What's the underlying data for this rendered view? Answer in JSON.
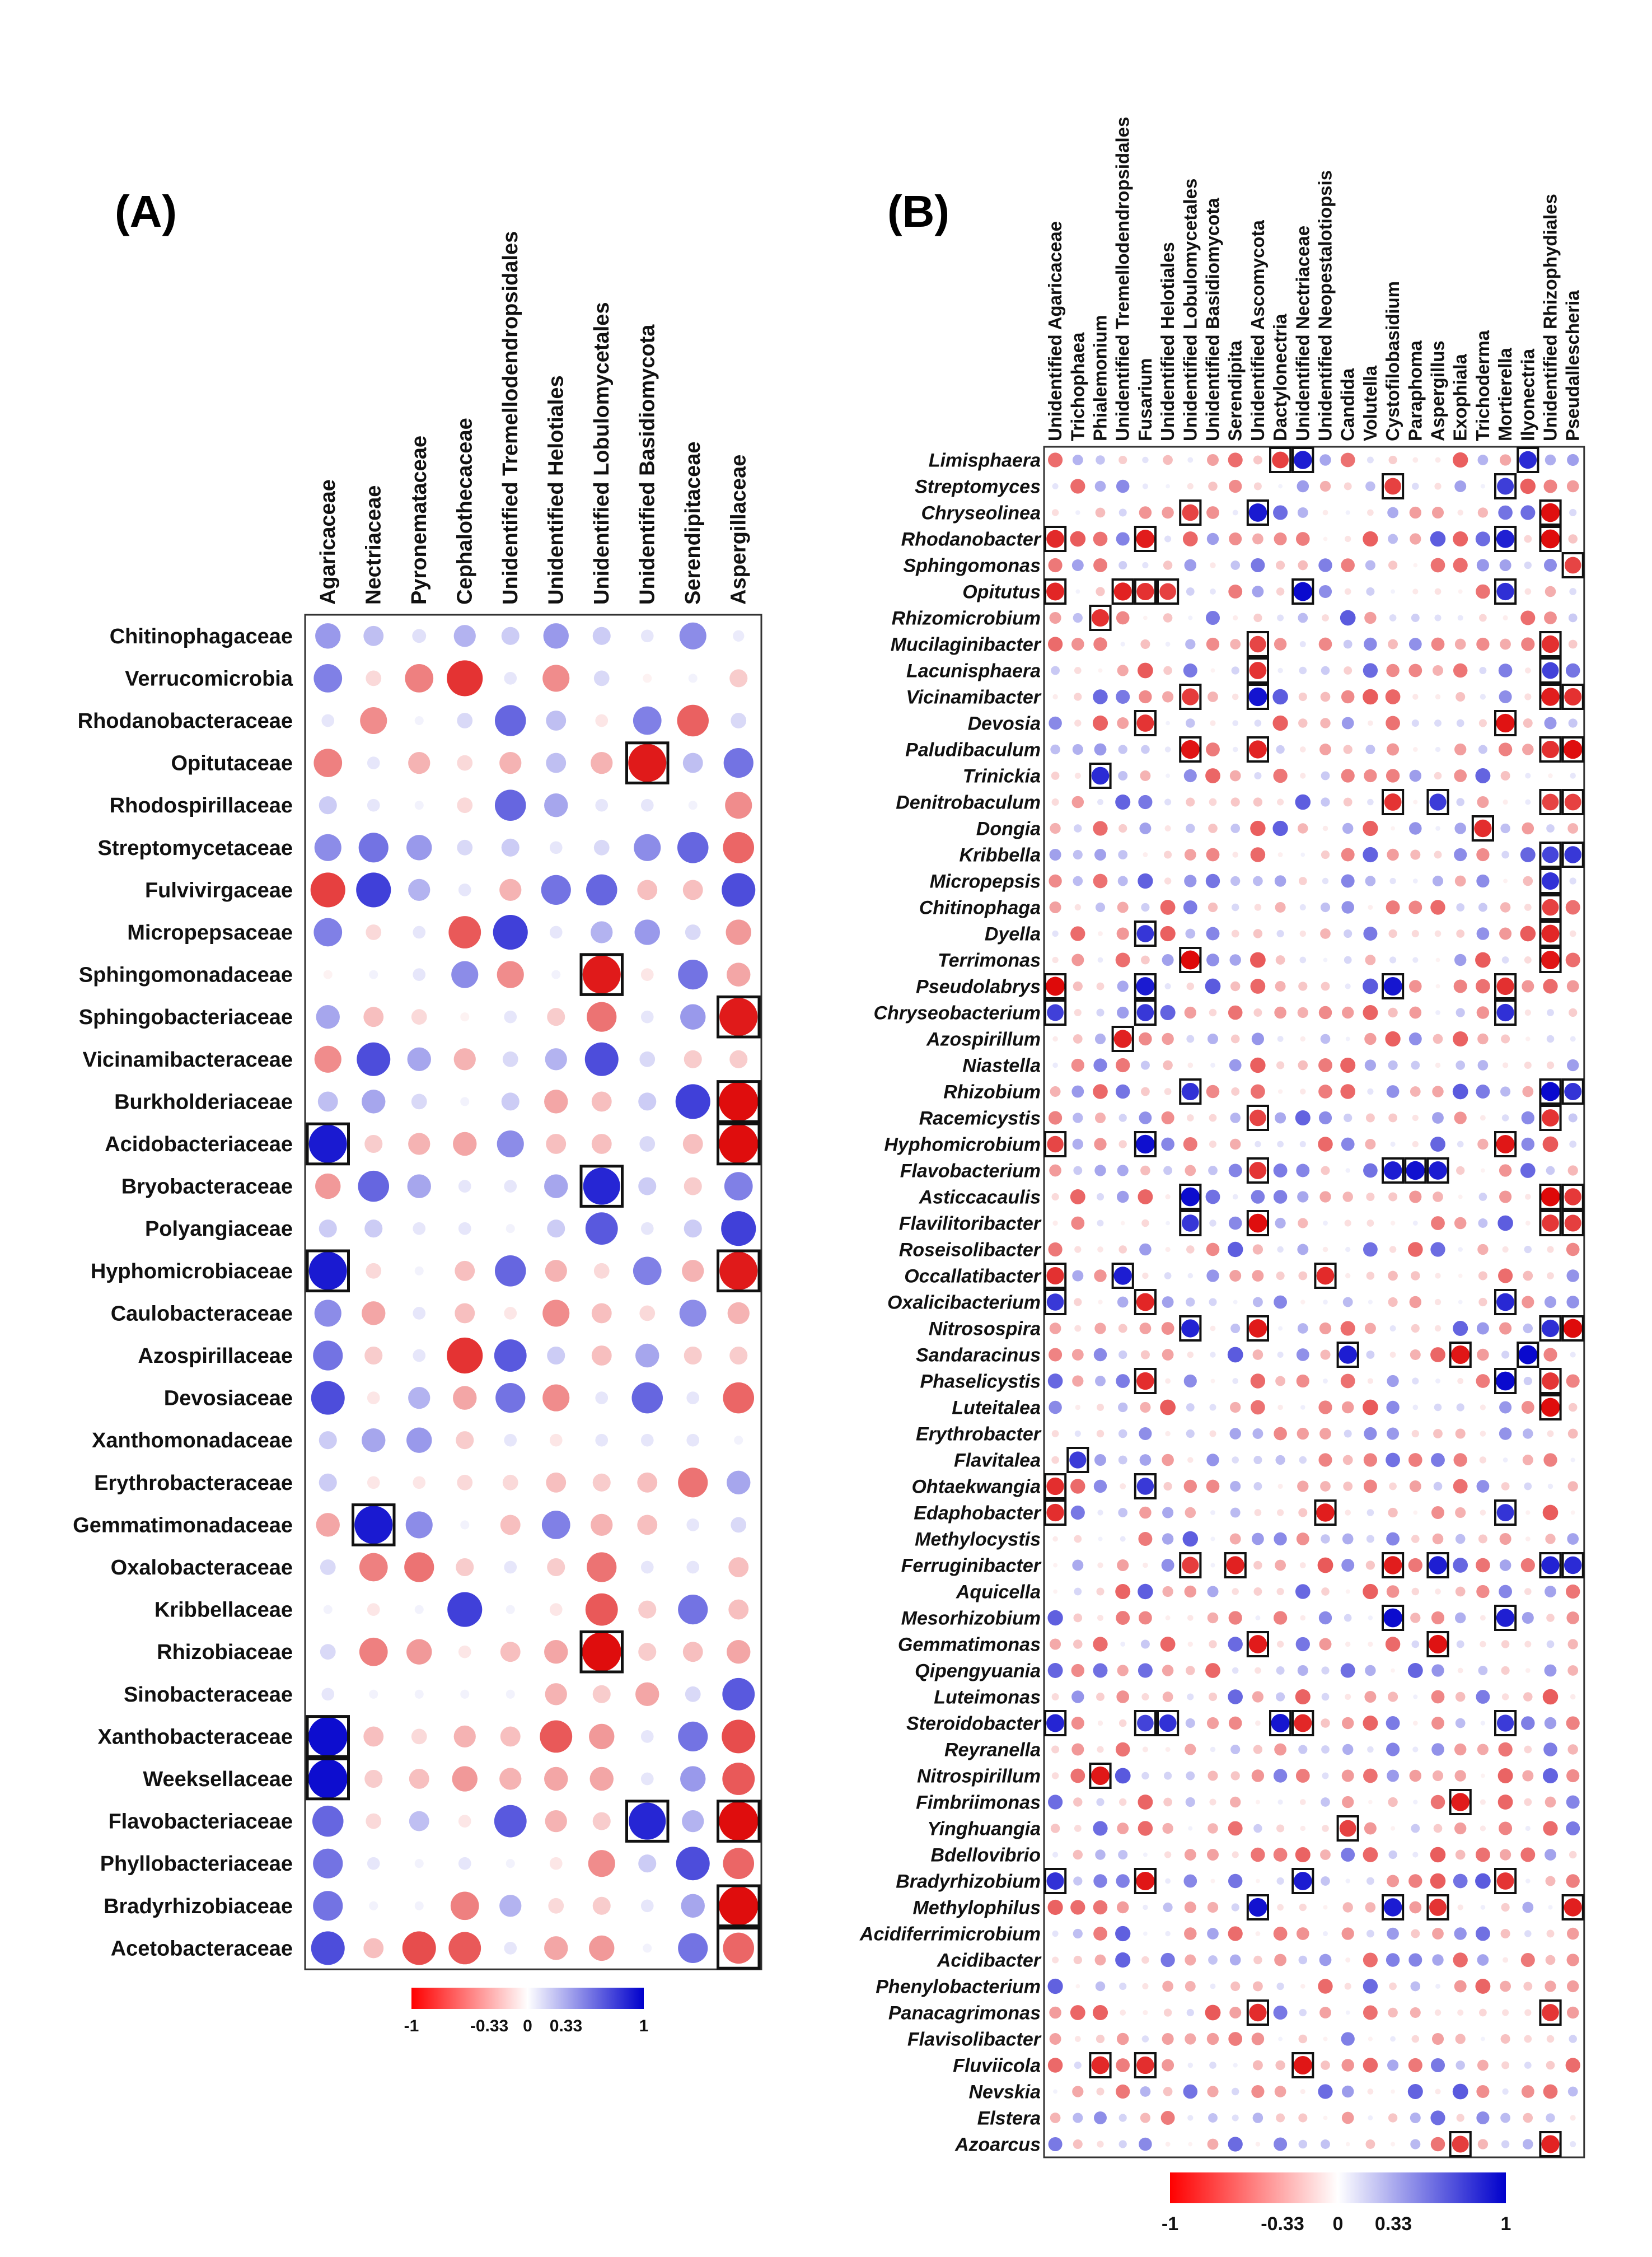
{
  "colors": {
    "negative": "#dd0000",
    "mid": "#ffffff",
    "positive": "#0000cc",
    "border": "#333333",
    "highlight": "#111111"
  },
  "chart_data": [
    {
      "type": "heatmap",
      "panel_label": "(A)",
      "title": "",
      "columns": [
        "Agaricaceae",
        "Nectriaceae",
        "Pyronemataceae",
        "Cephalothecaceae",
        "Unidentified Tremellodendropsidales",
        "Unidentified Helotiales",
        "Unidentified Lobulomycetales",
        "Unidentified Basidiomycota",
        "Serendipitaceae",
        "Aspergillaceae"
      ],
      "rows": [
        "Chitinophagaceae",
        "Verrucomicrobia",
        "Rhodanobacteraceae",
        "Opitutaceae",
        "Rhodospirillaceae",
        "Streptomycetaceae",
        "Fulvivirgaceae",
        "Micropepsaceae",
        "Sphingomonadaceae",
        "Sphingobacteriaceae",
        "Vicinamibacteraceae",
        "Burkholderiaceae",
        "Acidobacteriaceae",
        "Bryobacteraceae",
        "Polyangiaceae",
        "Hyphomicrobiaceae",
        "Caulobacteraceae",
        "Azospirillaceae",
        "Devosiaceae",
        "Xanthomonadaceae",
        "Erythrobacteraceae",
        "Gemmatimonadaceae",
        "Oxalobacteraceae",
        "Kribbellaceae",
        "Rhizobiaceae",
        "Sinobacteraceae",
        "Xanthobacteraceae",
        "Weeksellaceae",
        "Flavobacteriaceae",
        "Phyllobacteriaceae",
        "Bradyrhizobiaceae",
        "Acetobacteraceae"
      ],
      "values": [
        [
          0.4,
          0.25,
          0.12,
          0.3,
          0.2,
          0.4,
          0.2,
          0.1,
          0.45,
          0.08
        ],
        [
          0.5,
          -0.15,
          -0.5,
          -0.8,
          0.1,
          -0.45,
          0.15,
          -0.05,
          0.05,
          -0.2
        ],
        [
          0.1,
          -0.45,
          0.05,
          0.15,
          0.6,
          0.25,
          -0.1,
          0.5,
          -0.62,
          0.15
        ],
        [
          -0.5,
          0.1,
          -0.3,
          -0.15,
          -0.3,
          0.25,
          -0.3,
          -0.9,
          0.25,
          0.55
        ],
        [
          0.2,
          0.1,
          0.05,
          -0.15,
          0.6,
          0.35,
          0.1,
          0.1,
          0.05,
          -0.45
        ],
        [
          0.45,
          0.55,
          0.4,
          0.15,
          0.2,
          0.1,
          0.15,
          0.45,
          0.6,
          -0.6
        ],
        [
          -0.75,
          0.75,
          0.3,
          0.1,
          -0.3,
          0.55,
          0.6,
          -0.25,
          -0.25,
          0.7
        ],
        [
          0.5,
          -0.15,
          0.1,
          -0.65,
          0.75,
          0.1,
          0.3,
          0.4,
          0.15,
          -0.4
        ],
        [
          -0.05,
          0.05,
          0.1,
          0.45,
          -0.45,
          0.05,
          -0.9,
          -0.1,
          0.55,
          -0.35
        ],
        [
          0.35,
          -0.25,
          -0.15,
          -0.05,
          0.1,
          -0.2,
          -0.55,
          0.1,
          0.4,
          -0.9
        ],
        [
          -0.45,
          0.7,
          0.35,
          -0.3,
          0.15,
          0.3,
          0.7,
          0.15,
          -0.2,
          -0.2
        ],
        [
          0.25,
          0.35,
          0.15,
          0.05,
          0.2,
          -0.35,
          -0.25,
          0.2,
          0.75,
          -0.95
        ],
        [
          0.9,
          -0.2,
          -0.3,
          -0.35,
          0.45,
          -0.25,
          -0.25,
          0.15,
          -0.25,
          -0.95
        ],
        [
          -0.4,
          0.6,
          0.35,
          0.1,
          0.1,
          0.35,
          0.85,
          0.2,
          -0.2,
          0.5
        ],
        [
          0.2,
          0.2,
          0.1,
          0.1,
          0.05,
          0.2,
          0.65,
          0.1,
          0.2,
          0.75
        ],
        [
          0.9,
          -0.15,
          0.05,
          -0.25,
          0.6,
          -0.3,
          -0.15,
          0.5,
          -0.3,
          -0.9
        ],
        [
          0.45,
          -0.35,
          0.1,
          -0.25,
          -0.1,
          -0.45,
          -0.25,
          -0.15,
          0.45,
          -0.3
        ],
        [
          0.55,
          -0.2,
          0.1,
          -0.8,
          0.65,
          0.2,
          -0.25,
          0.35,
          -0.2,
          -0.2
        ],
        [
          0.7,
          -0.1,
          0.3,
          -0.35,
          0.55,
          -0.45,
          0.1,
          0.6,
          0.1,
          -0.6
        ],
        [
          0.2,
          0.35,
          0.4,
          -0.2,
          0.1,
          -0.1,
          0.1,
          0.1,
          0.1,
          0.05
        ],
        [
          0.2,
          -0.1,
          -0.1,
          -0.15,
          -0.15,
          -0.25,
          -0.2,
          -0.25,
          -0.55,
          0.35
        ],
        [
          -0.35,
          0.9,
          0.45,
          0.05,
          -0.25,
          0.5,
          -0.3,
          -0.25,
          0.1,
          0.15
        ],
        [
          0.15,
          -0.5,
          -0.55,
          -0.2,
          0.1,
          -0.2,
          -0.55,
          0.1,
          0.1,
          -0.25
        ],
        [
          0.05,
          -0.1,
          0.05,
          0.75,
          0.05,
          -0.1,
          -0.65,
          -0.2,
          0.55,
          -0.25
        ],
        [
          0.15,
          -0.5,
          -0.4,
          -0.1,
          -0.25,
          -0.35,
          -0.95,
          -0.2,
          -0.25,
          -0.35
        ],
        [
          0.1,
          0.05,
          0.05,
          0.05,
          0.05,
          -0.3,
          -0.2,
          -0.35,
          0.15,
          0.65
        ],
        [
          0.95,
          -0.25,
          -0.15,
          -0.3,
          -0.25,
          -0.65,
          -0.4,
          0.1,
          0.55,
          -0.7
        ],
        [
          0.95,
          -0.2,
          -0.25,
          -0.4,
          -0.3,
          -0.35,
          -0.35,
          0.1,
          0.4,
          -0.65
        ],
        [
          0.6,
          -0.15,
          0.25,
          -0.1,
          0.65,
          -0.3,
          -0.2,
          0.85,
          0.3,
          -0.95
        ],
        [
          0.55,
          0.1,
          0.05,
          0.1,
          0.05,
          -0.1,
          -0.45,
          0.2,
          0.7,
          -0.6
        ],
        [
          0.55,
          0.05,
          0.05,
          -0.5,
          0.3,
          -0.15,
          -0.2,
          0.1,
          0.35,
          -0.95
        ],
        [
          0.7,
          -0.25,
          -0.7,
          -0.65,
          0.1,
          -0.35,
          -0.4,
          0.05,
          0.55,
          -0.6
        ]
      ],
      "highlighted_cells": [
        [
          3,
          7
        ],
        [
          8,
          6
        ],
        [
          9,
          9
        ],
        [
          11,
          9
        ],
        [
          12,
          0
        ],
        [
          12,
          9
        ],
        [
          13,
          6
        ],
        [
          15,
          0
        ],
        [
          15,
          9
        ],
        [
          21,
          1
        ],
        [
          24,
          6
        ],
        [
          26,
          0
        ],
        [
          27,
          0
        ],
        [
          28,
          7
        ],
        [
          28,
          9
        ],
        [
          30,
          9
        ],
        [
          31,
          9
        ]
      ],
      "color_scale": {
        "ticks": [
          "-1",
          "-0.33",
          "0",
          "0.33",
          "1"
        ],
        "range": [
          -1,
          1
        ]
      }
    },
    {
      "type": "heatmap",
      "panel_label": "(B)",
      "title": "",
      "columns": [
        "Unidentified Agaricaceae",
        "Trichophaea",
        "Phialemonium",
        "Unidentified Tremellodendropsidales",
        "Fusarium",
        "Unidentified Helotiales",
        "Unidentified Lobulomycetales",
        "Unidentified Basidiomycota",
        "Serendipita",
        "Unidentified Ascomycota",
        "Dactylonectria",
        "Unidentified Nectriaceae",
        "Unidentified Neopestalotiopsis",
        "Candida",
        "Volutella",
        "Cystofilobasidium",
        "Paraphoma",
        "Aspergillus",
        "Exophiala",
        "Trichoderma",
        "Mortierella",
        "Ilyonectria",
        "Unidentified Rhizophydiales",
        "Pseudallescheria"
      ],
      "rows": [
        "Limisphaera",
        "Streptomyces",
        "Chryseolinea",
        "Rhodanobacter",
        "Sphingomonas",
        "Opitutus",
        "Rhizomicrobium",
        "Mucilaginibacter",
        "Lacunisphaera",
        "Vicinamibacter",
        "Devosia",
        "Paludibaculum",
        "Trinickia",
        "Denitrobaculum",
        "Dongia",
        "Kribbella",
        "Micropepsis",
        "Chitinophaga",
        "Dyella",
        "Terrimonas",
        "Pseudolabrys",
        "Chryseobacterium",
        "Azospirillum",
        "Niastella",
        "Rhizobium",
        "Racemicystis",
        "Hyphomicrobium",
        "Flavobacterium",
        "Asticcacaulis",
        "Flavilitoribacter",
        "Roseisolibacter",
        "Occallatibacter",
        "Oxalicibacterium",
        "Nitrosospira",
        "Sandaracinus",
        "Phaselicystis",
        "Luteitalea",
        "Erythrobacter",
        "Flavitalea",
        "Ohtaekwangia",
        "Edaphobacter",
        "Methylocystis",
        "Ferruginibacter",
        "Aquicella",
        "Mesorhizobium",
        "Gemmatimonas",
        "Qipengyuania",
        "Luteimonas",
        "Steroidobacter",
        "Reyranella",
        "Nitrospirillum",
        "Fimbriimonas",
        "Yinghuangia",
        "Bdellovibrio",
        "Bradyrhizobium",
        "Methylophilus",
        "Acidiferrimicrobium",
        "Acidibacter",
        "Phenylobacterium",
        "Panacagrimonas",
        "Flavisolibacter",
        "Fluviicola",
        "Nevskia",
        "Elstera",
        "Azoarcus"
      ],
      "highlighted_cells": [
        [
          0,
          10
        ],
        [
          0,
          11
        ],
        [
          0,
          21
        ],
        [
          1,
          15
        ],
        [
          1,
          20
        ],
        [
          2,
          6
        ],
        [
          2,
          9
        ],
        [
          2,
          22
        ],
        [
          3,
          0
        ],
        [
          3,
          4
        ],
        [
          3,
          20
        ],
        [
          3,
          22
        ],
        [
          4,
          23
        ],
        [
          5,
          0
        ],
        [
          5,
          3
        ],
        [
          5,
          4
        ],
        [
          5,
          5
        ],
        [
          5,
          11
        ],
        [
          5,
          20
        ],
        [
          6,
          2
        ],
        [
          7,
          9
        ],
        [
          7,
          22
        ],
        [
          8,
          9
        ],
        [
          8,
          22
        ],
        [
          9,
          6
        ],
        [
          9,
          9
        ],
        [
          9,
          22
        ],
        [
          9,
          23
        ],
        [
          10,
          4
        ],
        [
          10,
          20
        ],
        [
          11,
          6
        ],
        [
          11,
          9
        ],
        [
          11,
          22
        ],
        [
          11,
          23
        ],
        [
          12,
          2
        ],
        [
          13,
          15
        ],
        [
          13,
          17
        ],
        [
          13,
          22
        ],
        [
          13,
          23
        ],
        [
          14,
          19
        ],
        [
          15,
          22
        ],
        [
          15,
          23
        ],
        [
          16,
          22
        ],
        [
          17,
          22
        ],
        [
          18,
          4
        ],
        [
          18,
          22
        ],
        [
          19,
          6
        ],
        [
          19,
          22
        ],
        [
          20,
          0
        ],
        [
          20,
          4
        ],
        [
          20,
          15
        ],
        [
          20,
          20
        ],
        [
          21,
          0
        ],
        [
          21,
          4
        ],
        [
          21,
          20
        ],
        [
          22,
          3
        ],
        [
          24,
          6
        ],
        [
          24,
          22
        ],
        [
          24,
          23
        ],
        [
          25,
          9
        ],
        [
          25,
          22
        ],
        [
          26,
          0
        ],
        [
          26,
          4
        ],
        [
          26,
          20
        ],
        [
          27,
          9
        ],
        [
          27,
          15
        ],
        [
          27,
          16
        ],
        [
          27,
          17
        ],
        [
          28,
          6
        ],
        [
          28,
          22
        ],
        [
          28,
          23
        ],
        [
          29,
          6
        ],
        [
          29,
          9
        ],
        [
          29,
          22
        ],
        [
          29,
          23
        ],
        [
          31,
          0
        ],
        [
          31,
          3
        ],
        [
          31,
          12
        ],
        [
          32,
          0
        ],
        [
          32,
          4
        ],
        [
          32,
          20
        ],
        [
          33,
          6
        ],
        [
          33,
          9
        ],
        [
          33,
          22
        ],
        [
          33,
          23
        ],
        [
          34,
          13
        ],
        [
          34,
          18
        ],
        [
          34,
          21
        ],
        [
          35,
          4
        ],
        [
          35,
          20
        ],
        [
          35,
          22
        ],
        [
          36,
          22
        ],
        [
          38,
          1
        ],
        [
          39,
          0
        ],
        [
          39,
          4
        ],
        [
          40,
          0
        ],
        [
          40,
          12
        ],
        [
          40,
          20
        ],
        [
          42,
          6
        ],
        [
          42,
          8
        ],
        [
          42,
          15
        ],
        [
          42,
          17
        ],
        [
          42,
          22
        ],
        [
          42,
          23
        ],
        [
          44,
          15
        ],
        [
          44,
          20
        ],
        [
          45,
          9
        ],
        [
          45,
          17
        ],
        [
          48,
          0
        ],
        [
          48,
          4
        ],
        [
          48,
          5
        ],
        [
          48,
          10
        ],
        [
          48,
          11
        ],
        [
          48,
          20
        ],
        [
          50,
          2
        ],
        [
          51,
          18
        ],
        [
          52,
          13
        ],
        [
          54,
          0
        ],
        [
          54,
          4
        ],
        [
          54,
          11
        ],
        [
          54,
          20
        ],
        [
          55,
          9
        ],
        [
          55,
          15
        ],
        [
          55,
          17
        ],
        [
          55,
          23
        ],
        [
          59,
          9
        ],
        [
          59,
          22
        ],
        [
          61,
          2
        ],
        [
          61,
          4
        ],
        [
          61,
          11
        ],
        [
          64,
          18
        ],
        [
          64,
          22
        ]
      ],
      "cell_values_note": "Correlations for all 65 x 24 cells (range -1 to 1); highlighted cells are strong correlations (|r| >= 0.6).",
      "color_scale": {
        "ticks": [
          "-1",
          "-0.33",
          "0",
          "0.33",
          "1"
        ],
        "range": [
          -1,
          1
        ]
      }
    }
  ]
}
